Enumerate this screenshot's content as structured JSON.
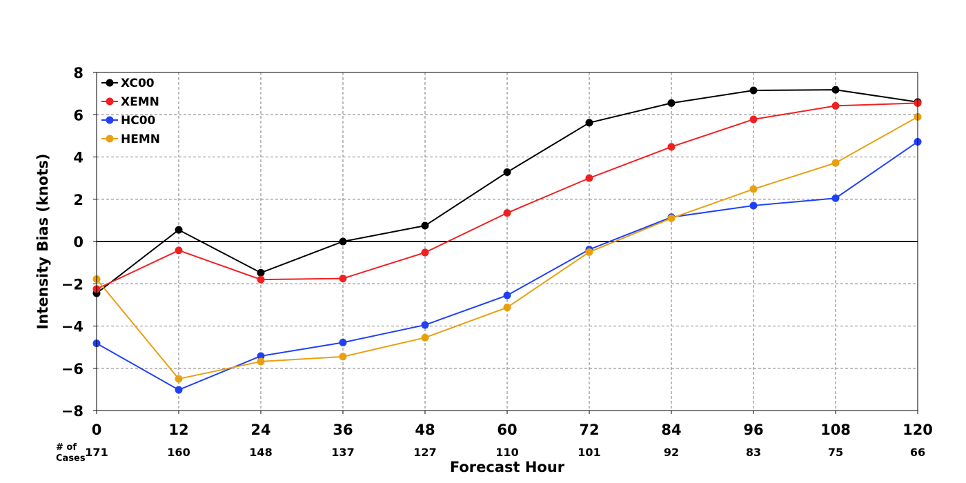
{
  "chart_data": {
    "type": "line",
    "title": "",
    "xlabel": "Forecast Hour",
    "ylabel": "Intensity Bias (knots)",
    "x": [
      0,
      12,
      24,
      36,
      48,
      60,
      72,
      84,
      96,
      108,
      120
    ],
    "x_tick_labels": [
      "0",
      "12",
      "24",
      "36",
      "48",
      "60",
      "72",
      "84",
      "96",
      "108",
      "120"
    ],
    "xlim": [
      0,
      120
    ],
    "ylim": [
      -8,
      8
    ],
    "y_ticks": [
      8,
      6,
      4,
      2,
      0,
      -2,
      -4,
      -6,
      -8
    ],
    "y_tick_labels": [
      "8",
      "6",
      "4",
      "2",
      "0",
      "−2",
      "−4",
      "−6",
      "−8"
    ],
    "grid": true,
    "grid_style": "dashed",
    "zero_line": true,
    "legend_position": "top-left",
    "cases_title": [
      "# of",
      "Cases"
    ],
    "cases": [
      "171",
      "160",
      "148",
      "137",
      "127",
      "110",
      "101",
      "92",
      "83",
      "75",
      "66"
    ],
    "series": [
      {
        "name": "XC00",
        "color": "#000000",
        "values": [
          -2.45,
          0.55,
          -1.48,
          0.0,
          0.75,
          3.28,
          5.62,
          6.55,
          7.15,
          7.18,
          6.6
        ]
      },
      {
        "name": "XEMN",
        "color": "#f02020",
        "values": [
          -2.25,
          -0.42,
          -1.8,
          -1.75,
          -0.52,
          1.35,
          3.0,
          4.48,
          5.78,
          6.42,
          6.55
        ]
      },
      {
        "name": "HC00",
        "color": "#2040f5",
        "values": [
          -4.82,
          -7.02,
          -5.42,
          -4.78,
          -3.95,
          -2.55,
          -0.38,
          1.15,
          1.7,
          2.05,
          4.72
        ]
      },
      {
        "name": "HEMN",
        "color": "#e8a010",
        "values": [
          -1.78,
          -6.5,
          -5.68,
          -5.45,
          -4.55,
          -3.12,
          -0.5,
          1.1,
          2.48,
          3.72,
          5.9
        ]
      }
    ]
  }
}
